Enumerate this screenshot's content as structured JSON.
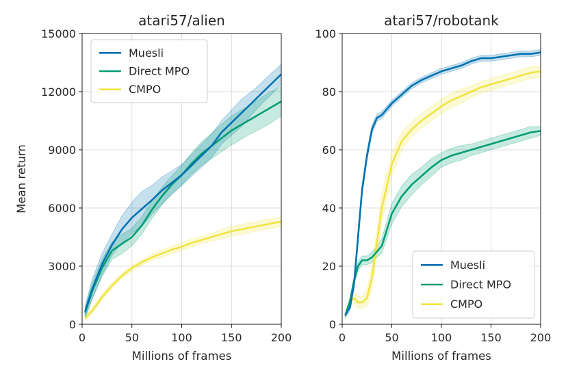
{
  "chart_data": [
    {
      "type": "line",
      "title": "atari57/alien",
      "xlabel": "Millions of frames",
      "ylabel": "Mean return",
      "xlim": [
        0,
        200
      ],
      "ylim": [
        0,
        15000
      ],
      "xticks": [
        0,
        50,
        100,
        150,
        200
      ],
      "yticks": [
        0,
        3000,
        6000,
        9000,
        12000,
        15000
      ],
      "xtick_labels": [
        "0",
        "50",
        "100",
        "150",
        "200"
      ],
      "ytick_labels": [
        "0",
        "3000",
        "6000",
        "9000",
        "12000",
        "15000"
      ],
      "grid": true,
      "legend": "top-left",
      "series": [
        {
          "name": "Muesli",
          "color": "#0072b2",
          "x": [
            3,
            10,
            20,
            30,
            40,
            50,
            60,
            70,
            80,
            90,
            100,
            110,
            120,
            130,
            140,
            150,
            160,
            170,
            180,
            190,
            200
          ],
          "y": [
            650,
            1800,
            3100,
            4100,
            4900,
            5500,
            5950,
            6400,
            6900,
            7300,
            7700,
            8200,
            8700,
            9200,
            9900,
            10400,
            10900,
            11400,
            11900,
            12400,
            12900
          ],
          "band": [
            300,
            500,
            550,
            550,
            700,
            800,
            900,
            750,
            700,
            600,
            550,
            550,
            600,
            600,
            600,
            650,
            700,
            600,
            550,
            550,
            500
          ]
        },
        {
          "name": "Direct MPO",
          "color": "#009e73",
          "x": [
            3,
            10,
            20,
            30,
            40,
            50,
            60,
            70,
            80,
            90,
            100,
            110,
            120,
            130,
            140,
            150,
            160,
            170,
            180,
            190,
            200
          ],
          "y": [
            600,
            1700,
            2900,
            3800,
            4150,
            4500,
            5100,
            5900,
            6600,
            7200,
            7700,
            8300,
            8800,
            9200,
            9600,
            10000,
            10300,
            10600,
            10900,
            11200,
            11500
          ],
          "band": [
            300,
            400,
            450,
            450,
            500,
            450,
            450,
            450,
            450,
            450,
            500,
            550,
            600,
            650,
            700,
            750,
            750,
            750,
            800,
            800,
            750
          ]
        },
        {
          "name": "CMPO",
          "color": "#f0e442",
          "x": [
            3,
            10,
            20,
            30,
            40,
            50,
            60,
            70,
            80,
            90,
            100,
            110,
            120,
            130,
            140,
            150,
            160,
            170,
            180,
            190,
            200
          ],
          "y": [
            300,
            700,
            1400,
            2000,
            2500,
            2900,
            3200,
            3450,
            3650,
            3850,
            4000,
            4200,
            4350,
            4500,
            4650,
            4800,
            4900,
            5000,
            5100,
            5200,
            5300
          ],
          "band": [
            100,
            150,
            150,
            150,
            150,
            150,
            150,
            150,
            200,
            200,
            200,
            200,
            200,
            200,
            250,
            250,
            250,
            250,
            250,
            250,
            250
          ]
        }
      ]
    },
    {
      "type": "line",
      "title": "atari57/robotank",
      "xlabel": "Millions of frames",
      "ylabel": "",
      "xlim": [
        0,
        200
      ],
      "ylim": [
        0,
        100
      ],
      "xticks": [
        0,
        50,
        100,
        150,
        200
      ],
      "yticks": [
        0,
        20,
        40,
        60,
        80,
        100
      ],
      "xtick_labels": [
        "0",
        "50",
        "100",
        "150",
        "200"
      ],
      "ytick_labels": [
        "0",
        "20",
        "40",
        "60",
        "80",
        "100"
      ],
      "grid": true,
      "legend": "bottom-right",
      "series": [
        {
          "name": "Muesli",
          "color": "#0072b2",
          "x": [
            3,
            8,
            12,
            16,
            20,
            25,
            30,
            35,
            40,
            50,
            60,
            70,
            80,
            90,
            100,
            110,
            120,
            130,
            140,
            150,
            160,
            170,
            180,
            190,
            200
          ],
          "y": [
            3,
            6,
            14,
            30,
            46,
            58,
            67,
            71,
            72,
            76,
            79,
            82,
            84,
            85.5,
            87,
            88,
            89,
            90.5,
            91.5,
            91.5,
            92,
            92.5,
            93,
            93,
            93.5
          ],
          "band": [
            0.8,
            1.2,
            1.5,
            2,
            2,
            1.8,
            1.5,
            1.2,
            1.2,
            1,
            1,
            1,
            1,
            1,
            1,
            1,
            1,
            1,
            1,
            1,
            1,
            1,
            1,
            1,
            1
          ]
        },
        {
          "name": "Direct MPO",
          "color": "#009e73",
          "x": [
            3,
            8,
            12,
            16,
            20,
            25,
            30,
            35,
            40,
            50,
            60,
            70,
            80,
            90,
            100,
            110,
            120,
            130,
            140,
            150,
            160,
            170,
            180,
            190,
            200
          ],
          "y": [
            3,
            8,
            15,
            20,
            22,
            22,
            23,
            25,
            27,
            38,
            44,
            48,
            51,
            54,
            56.5,
            58,
            59,
            60,
            61,
            62,
            63,
            64,
            65,
            66,
            66.5
          ],
          "band": [
            0.8,
            1.5,
            1.5,
            1.5,
            1.5,
            1.5,
            1.8,
            2,
            2.5,
            3.5,
            3.5,
            3.5,
            3,
            3,
            2.5,
            2.5,
            2.5,
            2,
            2,
            2,
            2,
            2,
            2,
            2,
            1.5
          ]
        },
        {
          "name": "CMPO",
          "color": "#f0e442",
          "x": [
            3,
            8,
            12,
            16,
            20,
            25,
            30,
            35,
            40,
            50,
            60,
            70,
            80,
            90,
            100,
            110,
            120,
            130,
            140,
            150,
            160,
            170,
            180,
            190,
            200
          ],
          "y": [
            3,
            8,
            9,
            7.5,
            7.5,
            9,
            16,
            28,
            40,
            55,
            63,
            67,
            70,
            72.5,
            75,
            77,
            78.5,
            80,
            81.5,
            82.5,
            83.5,
            84.5,
            85.5,
            86.5,
            87
          ],
          "band": [
            0.8,
            1.5,
            2,
            2,
            2,
            3,
            4,
            5,
            5,
            4,
            3,
            2.5,
            2.5,
            2.5,
            2.5,
            2.5,
            2.5,
            2,
            2,
            2,
            2,
            2,
            2,
            2,
            2
          ]
        }
      ]
    }
  ]
}
